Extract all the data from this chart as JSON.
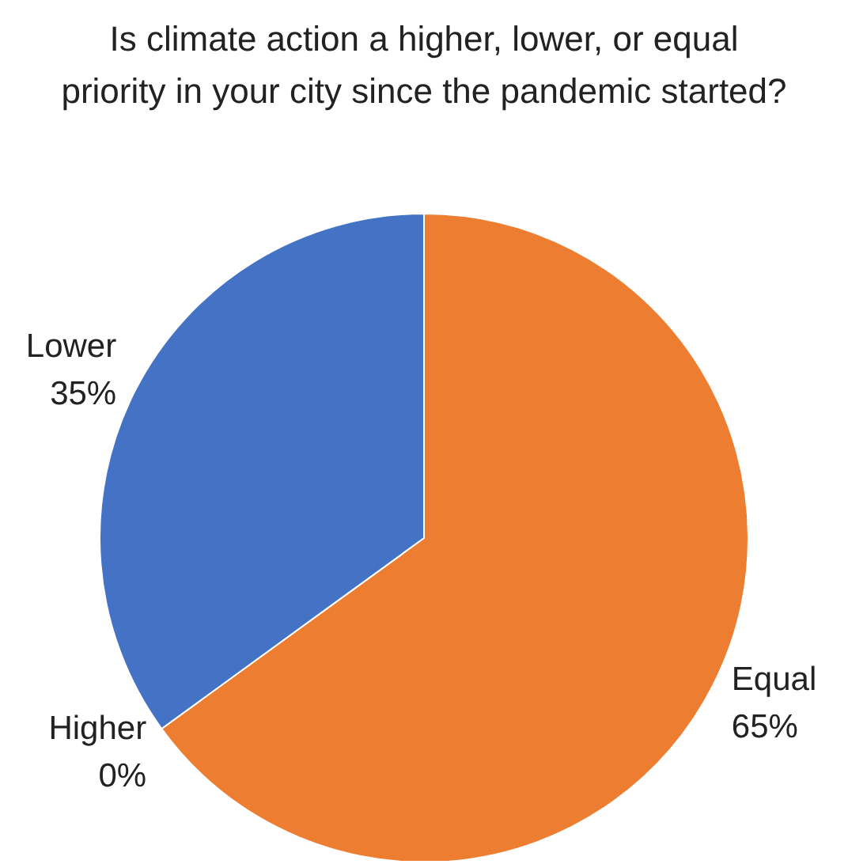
{
  "chart_data": {
    "type": "pie",
    "title": "Is climate action a higher, lower, or equal priority in your city since the pandemic started?",
    "categories": [
      "Equal",
      "Higher",
      "Lower"
    ],
    "values": [
      65,
      0,
      35
    ],
    "value_labels": [
      "65%",
      "0%",
      "35%"
    ],
    "colors": [
      "#ed7d31",
      "#a5a5a5",
      "#4472c4"
    ],
    "legend": false
  }
}
